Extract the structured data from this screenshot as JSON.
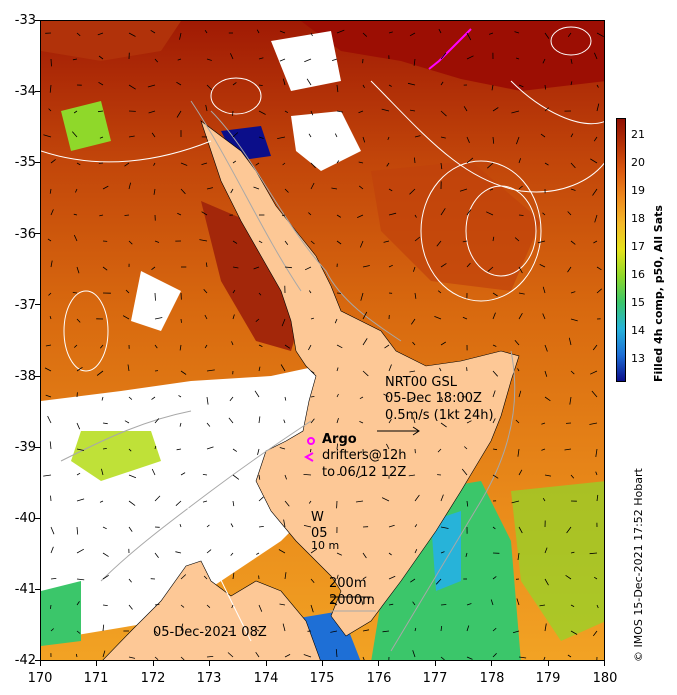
{
  "colorbar": {
    "title": "Filled 4h comp, p50, All Sats",
    "labels": [
      "21",
      "20",
      "19",
      "18",
      "17",
      "16",
      "15",
      "14",
      "13"
    ],
    "colors": [
      "#0b0e8a",
      "#1e6fd6",
      "#27b3d9",
      "#3bc66a",
      "#8fd82a",
      "#e4e21c",
      "#f4b92a",
      "#ee8a1e",
      "#dc5a10",
      "#b63206",
      "#901003"
    ]
  },
  "axes": {
    "x_ticks": [
      "170",
      "171",
      "172",
      "173",
      "174",
      "175",
      "176",
      "177",
      "178",
      "179",
      "180"
    ],
    "y_ticks": [
      "-33",
      "-34",
      "-35",
      "-36",
      "-37",
      "-38",
      "-39",
      "-40",
      "-41",
      "-42"
    ]
  },
  "annotations": {
    "currents_title": "NRT00 GSL",
    "currents_date": "05-Dec 18:00Z",
    "currents_scale": "0.5m/s (1kt 24h)",
    "argo_title": "Argo",
    "argo_line1": "drifters@12h",
    "argo_line2": "to 06/12 12Z",
    "wind_label": "W",
    "wind_date": "05",
    "wind_speed": "10 m",
    "iso_200": "200m",
    "iso_2000": "2000m",
    "image_date": "05-Dec-2021 08Z"
  },
  "credit": "© IMOS 15-Dec-2021 17:52 Hobart",
  "colors": {
    "land": "#fdc896",
    "drifter": "#ff00ff",
    "contour": "#a8a8a8"
  }
}
